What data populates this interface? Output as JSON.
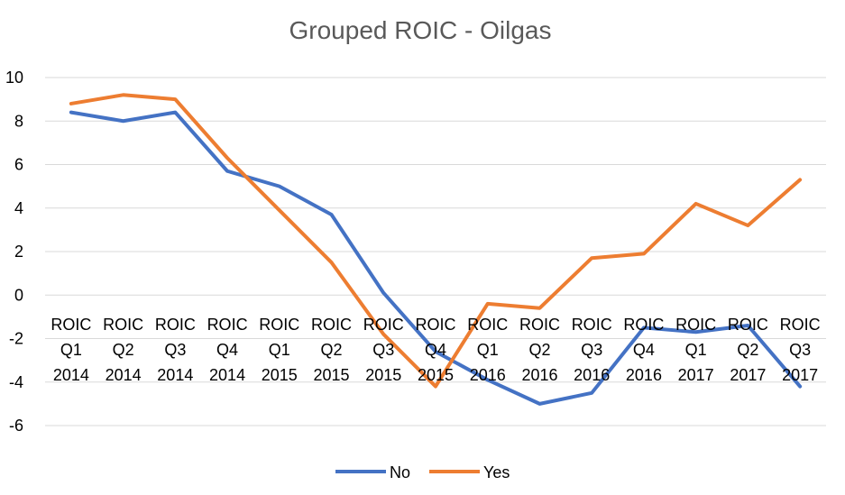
{
  "colors": {
    "no": "#4472C4",
    "yes": "#ED7D31",
    "grid": "#D9D9D9",
    "title": "#595959"
  },
  "chart_data": {
    "type": "line",
    "title": "Grouped ROIC - Oilgas",
    "xlabel": "",
    "ylabel": "",
    "ylim": [
      -6,
      10
    ],
    "yticks": [
      -6,
      -4,
      -2,
      0,
      2,
      4,
      6,
      8,
      10
    ],
    "grid": true,
    "legend": "bottom",
    "categories": [
      [
        "ROIC",
        "Q1",
        "2014"
      ],
      [
        "ROIC",
        "Q2",
        "2014"
      ],
      [
        "ROIC",
        "Q3",
        "2014"
      ],
      [
        "ROIC",
        "Q4",
        "2014"
      ],
      [
        "ROIC",
        "Q1",
        "2015"
      ],
      [
        "ROIC",
        "Q2",
        "2015"
      ],
      [
        "ROIC",
        "Q3",
        "2015"
      ],
      [
        "ROIC",
        "Q4",
        "2015"
      ],
      [
        "ROIC",
        "Q1",
        "2016"
      ],
      [
        "ROIC",
        "Q2",
        "2016"
      ],
      [
        "ROIC",
        "Q3",
        "2016"
      ],
      [
        "ROIC",
        "Q4",
        "2016"
      ],
      [
        "ROIC",
        "Q1",
        "2017"
      ],
      [
        "ROIC",
        "Q2",
        "2017"
      ],
      [
        "ROIC",
        "Q3",
        "2017"
      ]
    ],
    "series": [
      {
        "name": "No",
        "color": "#4472C4",
        "values": [
          8.4,
          8.0,
          8.4,
          5.7,
          5.0,
          3.7,
          0.1,
          -2.6,
          -3.9,
          -5.0,
          -4.5,
          -1.5,
          -1.7,
          -1.4,
          -4.2
        ]
      },
      {
        "name": "Yes",
        "color": "#ED7D31",
        "values": [
          8.8,
          9.2,
          9.0,
          6.3,
          3.9,
          1.5,
          -1.8,
          -4.2,
          -0.4,
          -0.6,
          1.7,
          1.9,
          4.2,
          3.2,
          5.3
        ]
      }
    ]
  }
}
